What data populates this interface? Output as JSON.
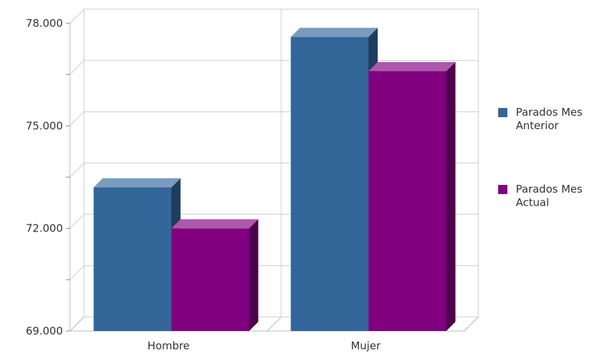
{
  "chart_data": {
    "type": "bar3d",
    "categories": [
      "Hombre",
      "Mujer"
    ],
    "series": [
      {
        "name": "Parados Mes Anterior",
        "color": "#336699",
        "values": [
          73200,
          77600
        ]
      },
      {
        "name": "Parados Mes Actual",
        "color": "#800080",
        "values": [
          72000,
          76600
        ]
      }
    ],
    "ylim": [
      69000,
      78000
    ],
    "yticks": [
      {
        "value": 69000,
        "label": "69.000"
      },
      {
        "value": 72000,
        "label": "72.000"
      },
      {
        "value": 75000,
        "label": "75.000"
      },
      {
        "value": 78000,
        "label": "78.000"
      }
    ],
    "minor_yticks": [
      70500,
      73500,
      76500
    ],
    "grid": true,
    "legend": "right"
  }
}
